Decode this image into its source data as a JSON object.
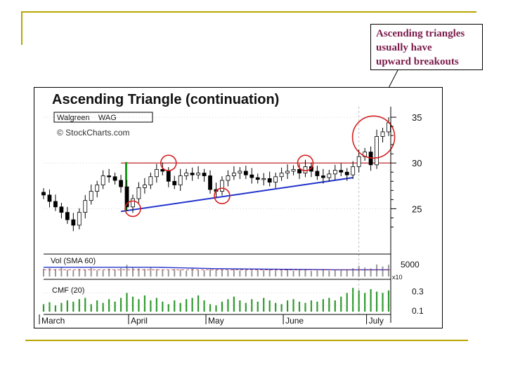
{
  "callout": {
    "lines": [
      "Ascending triangles",
      "usually have",
      "upward breakouts"
    ]
  },
  "chart_data": {
    "type": "candlestick",
    "title": "Ascending Triangle (continuation)",
    "ticker_label": "Walgreen    WAG",
    "watermark": "© StockCharts.com",
    "price_ticks": [
      25,
      30,
      35
    ],
    "price_tick_labels": [
      "25",
      "30",
      "35"
    ],
    "price_range": [
      22.5,
      36
    ],
    "x_labels": [
      {
        "label": "March",
        "index": 0
      },
      {
        "label": "April",
        "index": 15
      },
      {
        "label": "May",
        "index": 28
      },
      {
        "label": "June",
        "index": 41
      },
      {
        "label": "July",
        "index": 55
      }
    ],
    "volume_label": "Vol (SMA 60)",
    "volume_tick_label": "5000",
    "volume_multiplier_label": "x10",
    "cmf_label": "CMF (20)",
    "cmf_tick_labels": [
      "0.3",
      "0.1"
    ],
    "resistance_level": 30,
    "support_line": {
      "from_index": 13,
      "from_value": 24.7,
      "to_index": 52,
      "to_value": 28.4
    },
    "close": [
      26.5,
      25.8,
      25.2,
      24.6,
      23.8,
      23.2,
      24.6,
      25.9,
      26.9,
      27.6,
      28.6,
      28.5,
      28.1,
      27.4,
      25.2,
      26.1,
      27.3,
      27.6,
      28.5,
      29.3,
      29.1,
      28.0,
      27.6,
      28.6,
      28.9,
      28.7,
      28.9,
      28.6,
      27.1,
      26.9,
      28.1,
      28.6,
      28.9,
      29.1,
      28.7,
      28.4,
      28.2,
      28.3,
      27.9,
      28.5,
      28.9,
      29.1,
      29.3,
      28.9,
      29.6,
      29.1,
      28.6,
      28.4,
      28.8,
      29.2,
      29.0,
      28.7,
      29.6,
      30.7,
      31.2,
      29.8,
      32.9,
      33.4,
      34.4
    ],
    "volume": [
      2800,
      3000,
      2600,
      3400,
      2400,
      2200,
      2700,
      2500,
      3100,
      2300,
      2200,
      2800,
      2500,
      3000,
      4200,
      3300,
      2900,
      2700,
      3300,
      2600,
      2400,
      2200,
      2700,
      2500,
      2100,
      2800,
      2400,
      2300,
      2600,
      2500,
      2300,
      2200,
      2700,
      2200,
      2400,
      2100,
      2400,
      2300,
      2600,
      2200,
      2200,
      2500,
      2100,
      2400,
      2300,
      2000,
      2200,
      2400,
      2100,
      2300,
      2200,
      2500,
      3000,
      3800,
      3200,
      2900,
      4300,
      3600,
      4200
    ],
    "volume_sma": [
      3300,
      3300,
      3300,
      3300,
      3300,
      3300,
      3300,
      3300,
      3300,
      3300,
      3300,
      3300,
      3300,
      3300,
      3300,
      3300,
      3300,
      3300,
      3300,
      3300,
      3250,
      3200,
      3150,
      3100,
      3050,
      3000,
      2950,
      2900,
      2850,
      2800,
      2780,
      2760,
      2740,
      2720,
      2700,
      2680,
      2660,
      2640,
      2620,
      2600,
      2580,
      2560,
      2540,
      2520,
      2500,
      2480,
      2460,
      2440,
      2420,
      2400,
      2400,
      2400,
      2400,
      2400,
      2400,
      2400,
      2400,
      2400,
      2400
    ],
    "volume_range": [
      0,
      6000
    ],
    "cmf": [
      0.12,
      0.15,
      0.1,
      0.14,
      0.18,
      0.16,
      0.2,
      0.22,
      0.12,
      0.18,
      0.14,
      0.2,
      0.16,
      0.22,
      0.3,
      0.24,
      0.2,
      0.26,
      0.18,
      0.22,
      0.16,
      0.12,
      0.18,
      0.14,
      0.2,
      0.22,
      0.26,
      0.18,
      0.12,
      0.1,
      0.16,
      0.2,
      0.24,
      0.18,
      0.14,
      0.2,
      0.16,
      0.22,
      0.18,
      0.14,
      0.12,
      0.18,
      0.2,
      0.16,
      0.14,
      0.18,
      0.16,
      0.2,
      0.22,
      0.18,
      0.24,
      0.3,
      0.38,
      0.34,
      0.3,
      0.36,
      0.32,
      0.3,
      0.34
    ],
    "cmf_range": [
      0,
      0.45
    ],
    "highlighted_points": [
      {
        "index": 15,
        "value": 25.0
      },
      {
        "index": 21,
        "value": 30.0
      },
      {
        "index": 30,
        "value": 26.4
      },
      {
        "index": 44,
        "value": 30.0
      },
      {
        "index": 55,
        "value": 31.3
      }
    ]
  }
}
